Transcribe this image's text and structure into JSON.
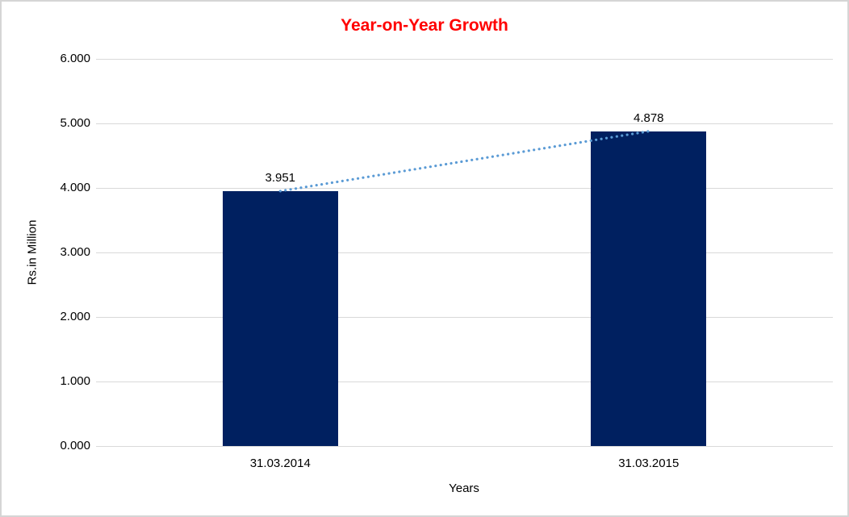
{
  "chart_data": {
    "type": "bar",
    "title": "Year-on-Year Growth",
    "categories": [
      "31.03.2014",
      "31.03.2015"
    ],
    "values": [
      3.951,
      4.878
    ],
    "data_labels": [
      "3.951",
      "4.878"
    ],
    "xlabel": "Years",
    "ylabel": "Rs.in Million",
    "ylim": [
      0,
      6
    ],
    "yticks": [
      {
        "value": 0,
        "label": "0.000"
      },
      {
        "value": 1,
        "label": "1.000"
      },
      {
        "value": 2,
        "label": "2.000"
      },
      {
        "value": 3,
        "label": "3.000"
      },
      {
        "value": 4,
        "label": "4.000"
      },
      {
        "value": 5,
        "label": "5.000"
      },
      {
        "value": 6,
        "label": "6.000"
      }
    ],
    "grid": true,
    "legend": "none",
    "trendline": {
      "style": "dotted",
      "connects": "bar-tops",
      "color": "#5b9bd5"
    },
    "colors": {
      "bar": "#002060",
      "trendline": "#5b9bd5",
      "gridline": "#d9d9d9",
      "title": "#ff0000",
      "text": "#000000",
      "frame_border": "#d5d5d5"
    }
  }
}
